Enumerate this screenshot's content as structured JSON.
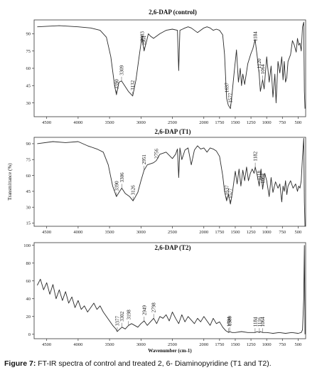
{
  "caption": {
    "label": "Figure 7:",
    "text": " FT-IR spectra of control and treated 2, 6- Diaminopyridine (T1 and T2)."
  },
  "chart_data": [
    {
      "type": "line",
      "title": "2,6-DAP (control)",
      "xlabel": "",
      "ylabel": "",
      "x_reversed": true,
      "xlim": [
        4700,
        380
      ],
      "ylim": [
        18,
        102
      ],
      "xticks": [
        "4500",
        "4000",
        "3500",
        "3000",
        "2500",
        "2000",
        "1750",
        "1500",
        "1250",
        "1000",
        "750",
        "500"
      ],
      "xtick_values": [
        4500,
        4000,
        3500,
        3000,
        2500,
        2000,
        1750,
        1500,
        1250,
        1000,
        750,
        500
      ],
      "yticks": [
        "30",
        "45",
        "60",
        "75",
        "90"
      ],
      "ytick_values": [
        30,
        45,
        60,
        75,
        90
      ],
      "series": [
        {
          "x": [
            4650,
            4300,
            4000,
            3800,
            3650,
            3550,
            3480,
            3420,
            3390,
            3350,
            3309,
            3260,
            3200,
            3132,
            3080,
            3030,
            2983,
            2951,
            2900,
            2883,
            2850,
            2800,
            2700,
            2600,
            2500,
            2420,
            2400,
            2380,
            2340,
            2300,
            2250,
            2200,
            2100,
            2000,
            1950,
            1900,
            1850,
            1800,
            1750,
            1700,
            1670,
            1637,
            1610,
            1577,
            1550,
            1520,
            1480,
            1450,
            1420,
            1400,
            1380,
            1350,
            1300,
            1250,
            1220,
            1184,
            1150,
            1120,
            1100,
            1064,
            1040,
            1000,
            960,
            930,
            900,
            870,
            850,
            820,
            790,
            760,
            740,
            720,
            700,
            680,
            660,
            620,
            590,
            560,
            530,
            510,
            490,
            470,
            450,
            430,
            410,
            400,
            390
          ],
          "y": [
            96,
            97,
            96,
            95,
            93,
            87,
            70,
            45,
            37,
            48,
            49,
            45,
            40,
            36,
            50,
            70,
            88,
            75,
            86,
            90,
            88,
            86,
            90,
            93,
            94,
            93,
            58,
            93,
            94,
            95,
            96,
            95,
            91,
            95,
            96,
            95,
            93,
            94,
            93,
            89,
            72,
            34,
            28,
            25,
            38,
            55,
            76,
            48,
            60,
            45,
            55,
            46,
            64,
            73,
            77,
            85,
            70,
            55,
            40,
            50,
            42,
            70,
            48,
            62,
            35,
            55,
            30,
            66,
            56,
            70,
            50,
            66,
            48,
            52,
            66,
            72,
            84,
            80,
            74,
            86,
            80,
            82,
            75,
            96,
            100,
            40,
            25
          ]
        }
      ],
      "annotations": [
        {
          "x": 3390,
          "y": 37,
          "text": "3390"
        },
        {
          "x": 3309,
          "y": 49,
          "text": "3309"
        },
        {
          "x": 3132,
          "y": 36,
          "text": "3132"
        },
        {
          "x": 2983,
          "y": 88,
          "text": "2983"
        },
        {
          "x": 2951,
          "y": 75,
          "text": "2951"
        },
        {
          "x": 1637,
          "y": 34,
          "text": "1637"
        },
        {
          "x": 1577,
          "y": 25,
          "text": "1577"
        },
        {
          "x": 1184,
          "y": 85,
          "text": "1184"
        },
        {
          "x": 1120,
          "y": 55,
          "text": "1120"
        },
        {
          "x": 1064,
          "y": 50,
          "text": "1064"
        }
      ]
    },
    {
      "type": "line",
      "title": "2,6-DAP (T1)",
      "xlabel": "",
      "ylabel": "Transmittance (%)",
      "x_reversed": true,
      "xlim": [
        4700,
        380
      ],
      "ylim": [
        12,
        96
      ],
      "xticks": [
        "4500",
        "4000",
        "3500",
        "3000",
        "2500",
        "2000",
        "1750",
        "1500",
        "1250",
        "1000",
        "750",
        "500"
      ],
      "xtick_values": [
        4500,
        4000,
        3500,
        3000,
        2500,
        2000,
        1750,
        1500,
        1250,
        1000,
        750,
        500
      ],
      "yticks": [
        "15",
        "30",
        "45",
        "60",
        "75",
        "90"
      ],
      "ytick_values": [
        15,
        30,
        45,
        60,
        75,
        90
      ],
      "series": [
        {
          "x": [
            4650,
            4400,
            4200,
            4000,
            3850,
            3700,
            3600,
            3520,
            3450,
            3390,
            3340,
            3306,
            3250,
            3180,
            3126,
            3050,
            3000,
            2951,
            2900,
            2800,
            2756,
            2700,
            2600,
            2500,
            2450,
            2420,
            2400,
            2380,
            2350,
            2300,
            2250,
            2200,
            2150,
            2100,
            2050,
            2000,
            1950,
            1900,
            1850,
            1800,
            1750,
            1700,
            1670,
            1637,
            1610,
            1577,
            1540,
            1500,
            1470,
            1440,
            1410,
            1380,
            1350,
            1320,
            1290,
            1260,
            1230,
            1200,
            1182,
            1150,
            1118,
            1090,
            1064,
            1030,
            1000,
            960,
            930,
            900,
            860,
            820,
            790,
            760,
            740,
            720,
            700,
            680,
            660,
            620,
            580,
            540,
            510,
            490,
            470,
            450,
            430,
            410,
            400,
            390
          ],
          "y": [
            90,
            92,
            91,
            92,
            88,
            85,
            82,
            70,
            50,
            40,
            45,
            48,
            43,
            40,
            36,
            44,
            55,
            65,
            70,
            72,
            74,
            80,
            82,
            76,
            80,
            85,
            58,
            86,
            75,
            84,
            86,
            70,
            84,
            88,
            85,
            86,
            82,
            86,
            85,
            83,
            78,
            60,
            45,
            36,
            42,
            33,
            46,
            64,
            52,
            66,
            50,
            65,
            55,
            68,
            55,
            62,
            66,
            62,
            68,
            60,
            50,
            66,
            47,
            62,
            55,
            40,
            58,
            44,
            54,
            48,
            52,
            35,
            50,
            45,
            55,
            42,
            50,
            55,
            48,
            52,
            45,
            50,
            48,
            55,
            78,
            95,
            35,
            12
          ]
        }
      ],
      "annotations": [
        {
          "x": 3390,
          "y": 40,
          "text": "3390"
        },
        {
          "x": 3306,
          "y": 48,
          "text": "3306"
        },
        {
          "x": 3126,
          "y": 36,
          "text": "3126"
        },
        {
          "x": 2951,
          "y": 65,
          "text": "2951"
        },
        {
          "x": 2756,
          "y": 74,
          "text": "2756"
        },
        {
          "x": 1637,
          "y": 36,
          "text": "1637"
        },
        {
          "x": 1577,
          "y": 33,
          "text": "1577"
        },
        {
          "x": 1182,
          "y": 68,
          "text": "1182"
        },
        {
          "x": 1118,
          "y": 50,
          "text": "1118"
        },
        {
          "x": 1064,
          "y": 47,
          "text": "1064"
        }
      ]
    },
    {
      "type": "line",
      "title": "2,6-DAP (T2)",
      "xlabel": "Wavenumber (cm-1)",
      "ylabel": "",
      "x_reversed": true,
      "xlim": [
        4700,
        380
      ],
      "ylim": [
        -5,
        103
      ],
      "xticks": [
        "4500",
        "4000",
        "3500",
        "3000",
        "2500",
        "2000",
        "1750",
        "1500",
        "1250",
        "1000",
        "750",
        "500"
      ],
      "xtick_values": [
        4500,
        4000,
        3500,
        3000,
        2500,
        2000,
        1750,
        1500,
        1250,
        1000,
        750,
        500
      ],
      "yticks": [
        "0",
        "20",
        "40",
        "60",
        "80",
        "100"
      ],
      "ytick_values": [
        0,
        20,
        40,
        60,
        80,
        100
      ],
      "series": [
        {
          "x": [
            4650,
            4600,
            4550,
            4500,
            4450,
            4400,
            4350,
            4300,
            4250,
            4200,
            4150,
            4100,
            4050,
            4000,
            3950,
            3900,
            3850,
            3800,
            3750,
            3700,
            3650,
            3600,
            3550,
            3500,
            3450,
            3400,
            3377,
            3350,
            3302,
            3250,
            3198,
            3150,
            3100,
            3050,
            3000,
            2949,
            2900,
            2850,
            2798,
            2750,
            2700,
            2650,
            2600,
            2550,
            2500,
            2450,
            2400,
            2350,
            2300,
            2250,
            2200,
            2150,
            2100,
            2050,
            2000,
            1950,
            1900,
            1850,
            1800,
            1750,
            1700,
            1650,
            1604,
            1589,
            1550,
            1500,
            1400,
            1300,
            1250,
            1184,
            1150,
            1116,
            1100,
            1064,
            1000,
            900,
            800,
            700,
            600,
            500,
            450,
            430,
            410,
            400,
            390
          ],
          "y": [
            55,
            62,
            50,
            58,
            45,
            56,
            40,
            50,
            38,
            48,
            35,
            42,
            30,
            38,
            28,
            32,
            25,
            30,
            35,
            28,
            32,
            25,
            20,
            15,
            10,
            6,
            3,
            5,
            8,
            6,
            10,
            12,
            10,
            8,
            12,
            15,
            10,
            14,
            18,
            12,
            20,
            18,
            22,
            15,
            25,
            18,
            12,
            22,
            14,
            20,
            16,
            12,
            18,
            14,
            20,
            15,
            10,
            18,
            12,
            14,
            8,
            4,
            2,
            3,
            2,
            2,
            3,
            2,
            2,
            2,
            3,
            2,
            3,
            2,
            2,
            1,
            2,
            1,
            2,
            1,
            2,
            5,
            40,
            100,
            0
          ]
        }
      ],
      "annotations": [
        {
          "x": 3377,
          "y": 3,
          "text": "3377"
        },
        {
          "x": 3302,
          "y": 8,
          "text": "3302"
        },
        {
          "x": 3198,
          "y": 10,
          "text": "3198"
        },
        {
          "x": 2949,
          "y": 15,
          "text": "2949"
        },
        {
          "x": 2798,
          "y": 18,
          "text": "2798"
        },
        {
          "x": 1604,
          "y": 2,
          "text": "1604"
        },
        {
          "x": 1589,
          "y": 3,
          "text": "1589"
        },
        {
          "x": 1184,
          "y": 2,
          "text": "1184"
        },
        {
          "x": 1116,
          "y": 2,
          "text": "1116"
        },
        {
          "x": 1064,
          "y": 2,
          "text": "1064"
        }
      ]
    }
  ]
}
